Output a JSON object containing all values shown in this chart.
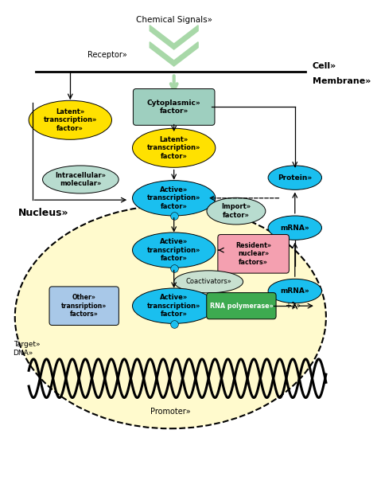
{
  "fig_width": 4.74,
  "fig_height": 6.33,
  "bg_color": "#ffffff",
  "colors": {
    "yellow": "#FFE100",
    "cyan": "#1ABFEF",
    "teal_rect": "#9ECFBF",
    "light_green_ellipse": "#B8DCCF",
    "pink_rect": "#F4A0B0",
    "blue_rect": "#A8C8E8",
    "dark_green_rect": "#3DAA50",
    "coact_ellipse": "#C8E0D0",
    "nucleus_fill": "#FFFACD",
    "nucleus_edge": "#000000"
  },
  "xlim": [
    0,
    10
  ],
  "ylim": [
    0,
    13.5
  ]
}
